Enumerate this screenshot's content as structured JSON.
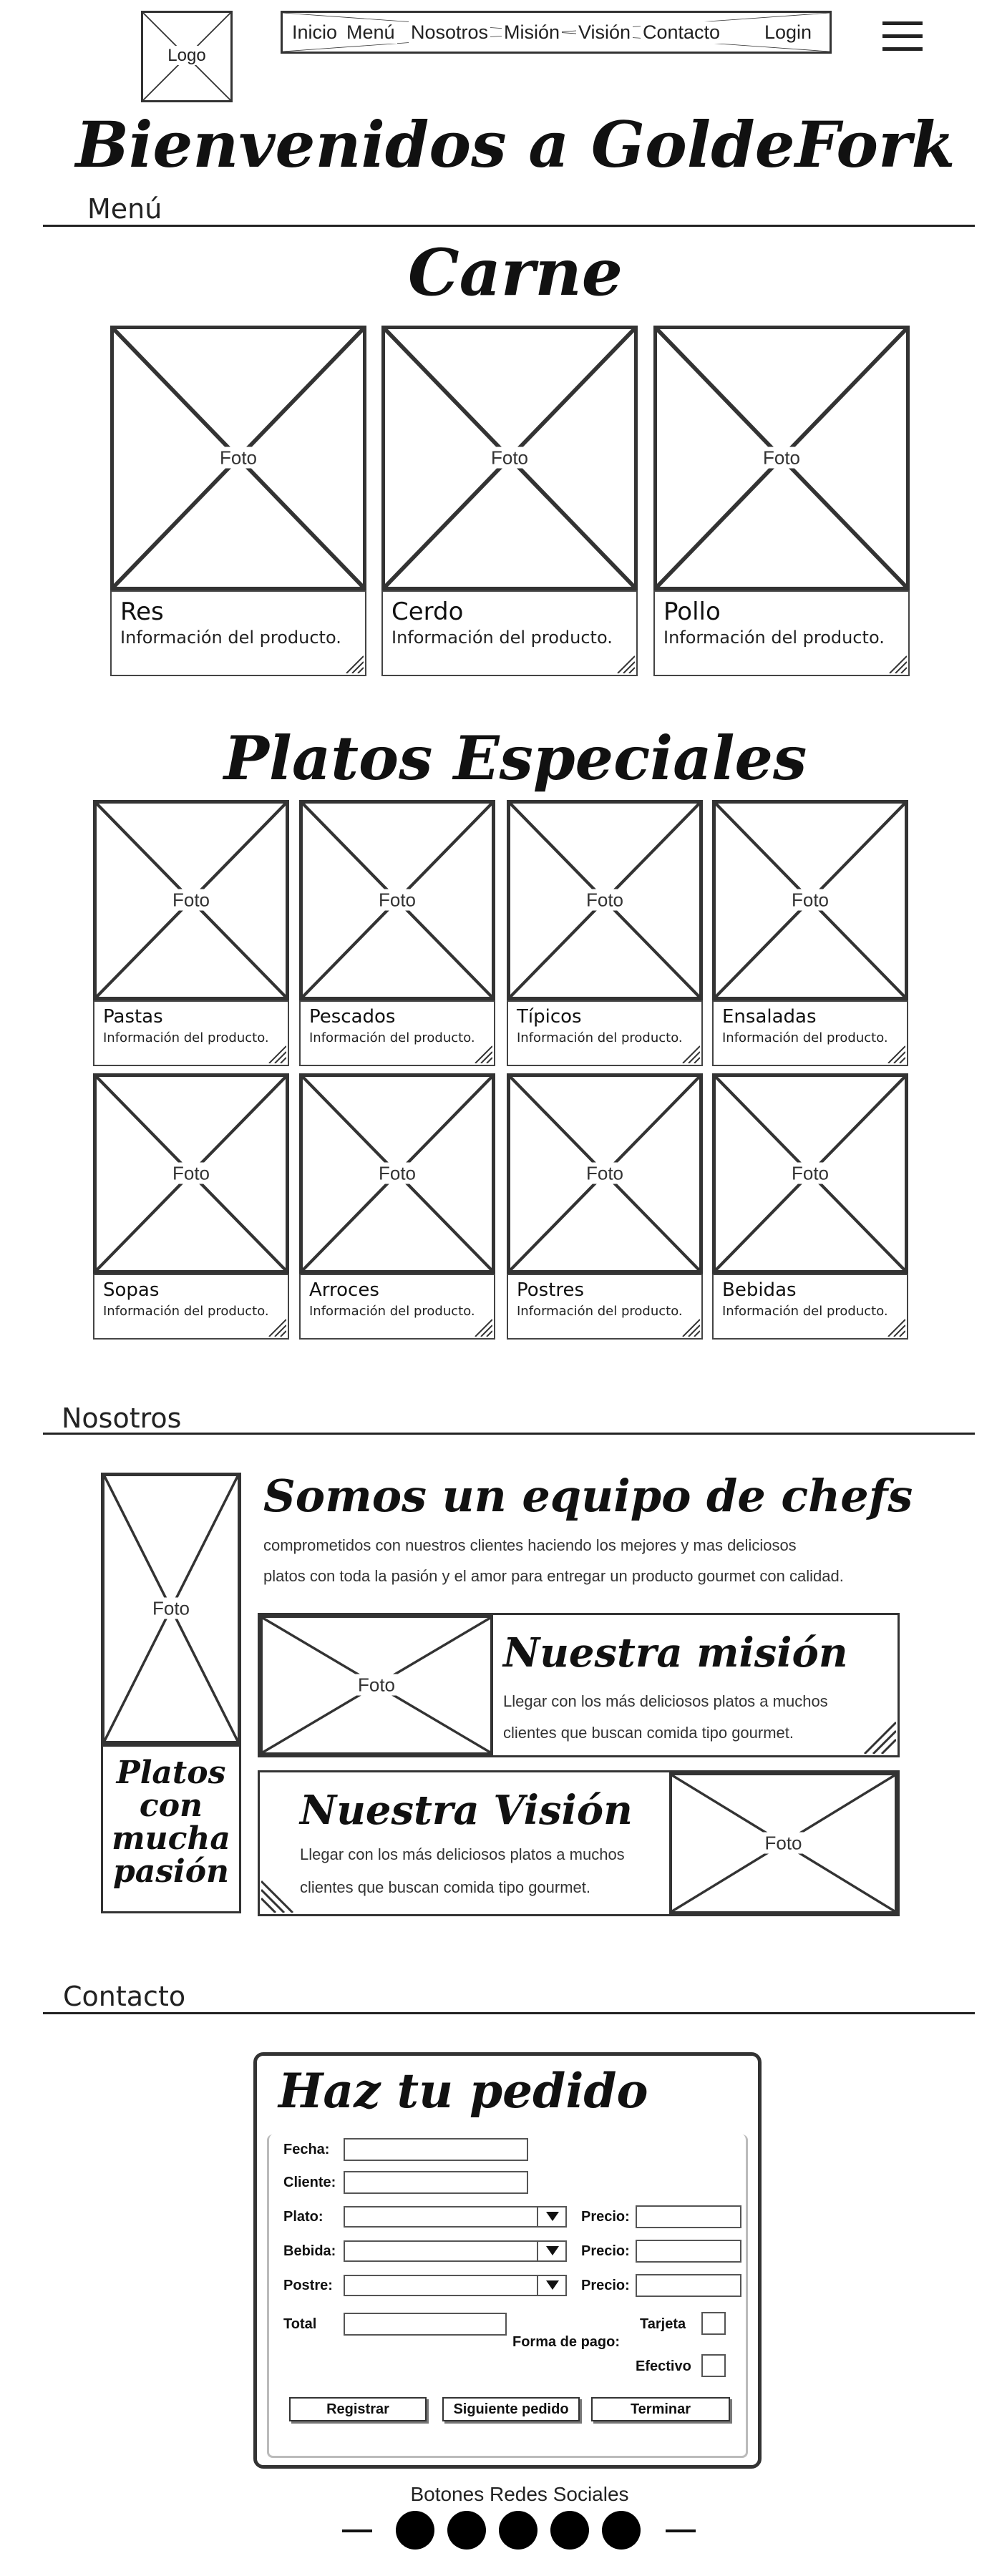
{
  "header": {
    "logo": "Logo",
    "nav": [
      "Inicio",
      "Menú",
      "Nosotros",
      "Misión",
      "Visión",
      "Contacto",
      "Login"
    ],
    "menu_icon": "hamburger-icon"
  },
  "hero": {
    "title": "Bienvenidos a GoldeFork"
  },
  "menu_section": {
    "label": "Menú",
    "carne": {
      "title": "Carne",
      "items": [
        {
          "photo": "Foto",
          "name": "Res",
          "info": "Información del producto."
        },
        {
          "photo": "Foto",
          "name": "Cerdo",
          "info": "Información del producto."
        },
        {
          "photo": "Foto",
          "name": "Pollo",
          "info": "Información del producto."
        }
      ]
    },
    "especiales": {
      "title": "Platos Especiales",
      "items": [
        {
          "photo": "Foto",
          "name": "Pastas",
          "info": "Información del producto."
        },
        {
          "photo": "Foto",
          "name": "Pescados",
          "info": "Información del producto."
        },
        {
          "photo": "Foto",
          "name": "Típicos",
          "info": "Información del producto."
        },
        {
          "photo": "Foto",
          "name": "Ensaladas",
          "info": "Información del producto."
        },
        {
          "photo": "Foto",
          "name": "Sopas",
          "info": "Información del producto."
        },
        {
          "photo": "Foto",
          "name": "Arroces",
          "info": "Información del producto."
        },
        {
          "photo": "Foto",
          "name": "Postres",
          "info": "Información del producto."
        },
        {
          "photo": "Foto",
          "name": "Bebidas",
          "info": "Información del producto."
        }
      ]
    }
  },
  "nosotros": {
    "label": "Nosotros",
    "side_photo": "Foto",
    "side_caption": [
      "Platos",
      "con",
      "mucha",
      "pasión"
    ],
    "title": "Somos un equipo de chefs",
    "text_line1": "comprometidos con nuestros clientes haciendo los mejores y mas deliciosos",
    "text_line2": "platos con  toda la pasión y el amor para entregar un producto gourmet con calidad.",
    "mision": {
      "photo": "Foto",
      "title": "Nuestra misión",
      "line1": "Llegar con los más deliciosos platos a muchos",
      "line2": "clientes que buscan comida tipo gourmet."
    },
    "vision": {
      "photo": "Foto",
      "title": "Nuestra Visión",
      "line1": "Llegar con los más deliciosos platos a muchos",
      "line2": "clientes que buscan comida tipo gourmet."
    }
  },
  "contacto": {
    "label": "Contacto",
    "form": {
      "title": "Haz tu pedido",
      "fecha": "Fecha:",
      "cliente": "Cliente:",
      "plato": "Plato:",
      "bebida": "Bebida:",
      "postre": "Postre:",
      "precio": "Precio:",
      "total": "Total",
      "forma_pago": "Forma de pago:",
      "tarjeta": "Tarjeta",
      "efectivo": "Efectivo",
      "buttons": {
        "registrar": "Registrar",
        "siguiente": "Siguiente pedido",
        "terminar": "Terminar"
      }
    }
  },
  "footer": {
    "social_label": "Botones Redes Sociales",
    "social_count": 5
  }
}
